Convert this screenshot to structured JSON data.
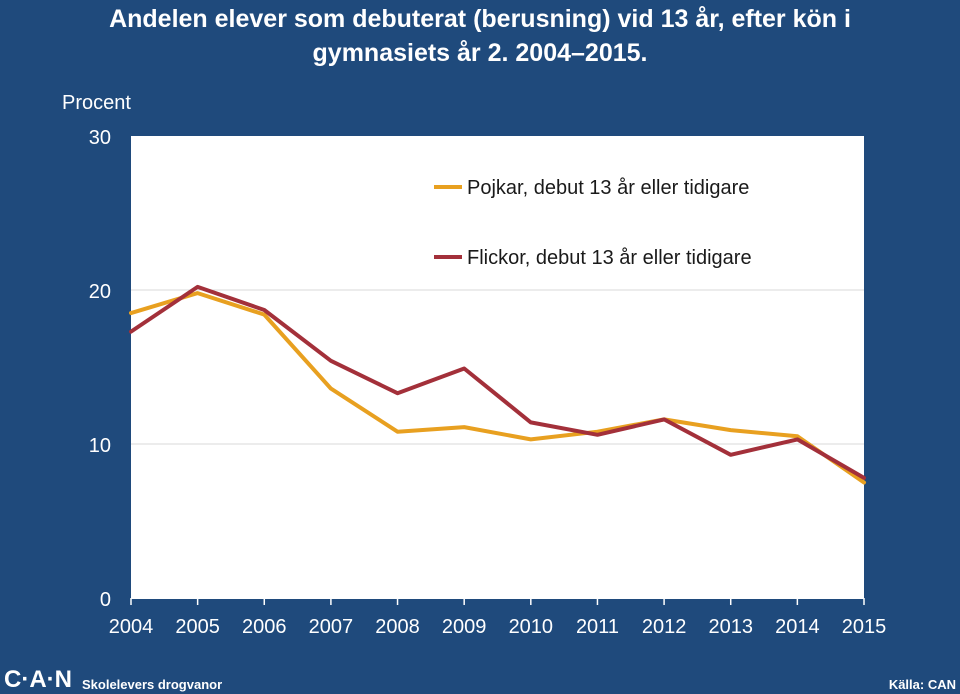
{
  "title": {
    "line1": "Andelen elever som debuterat (berusning) vid 13 år, efter kön i",
    "line2": "gymnasiets år 2. 2004–2015."
  },
  "chart_data": {
    "type": "line",
    "ylabel": "Procent",
    "ylim": [
      0,
      30
    ],
    "yticks": [
      0,
      10,
      20,
      30
    ],
    "x": [
      "2004",
      "2005",
      "2006",
      "2007",
      "2008",
      "2009",
      "2010",
      "2011",
      "2012",
      "2013",
      "2014",
      "2015"
    ],
    "grid": "horizontal",
    "legend_position": "top-right",
    "series": [
      {
        "name": "Pojkar, debut 13 år eller tidigare",
        "color": "#e8a020",
        "values": [
          18.5,
          19.8,
          18.4,
          13.6,
          10.8,
          11.1,
          10.3,
          10.8,
          11.6,
          10.9,
          10.5,
          7.5
        ]
      },
      {
        "name": "Flickor, debut 13 år eller tidigare",
        "color": "#a3303a",
        "values": [
          17.3,
          20.2,
          18.7,
          15.4,
          13.3,
          14.9,
          11.4,
          10.6,
          11.6,
          9.3,
          10.3,
          7.8
        ]
      }
    ]
  },
  "footer": {
    "logo": "C·A·N",
    "source_name": "Skolelevers drogvanor",
    "credit": "Källa: CAN"
  }
}
